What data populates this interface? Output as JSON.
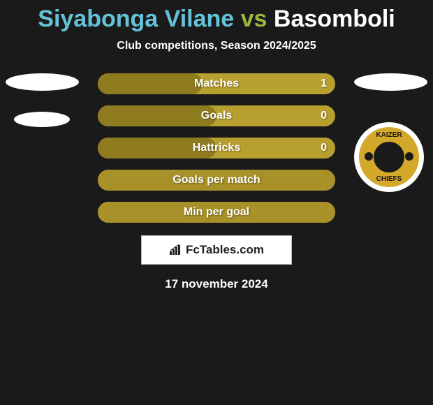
{
  "title": {
    "player1": "Siyabonga Vilane",
    "vs": "vs",
    "player2": "Basomboli",
    "player1_color": "#64c3d8",
    "vs_color": "#9ab83e",
    "player2_color": "#ffffff"
  },
  "subtitle": "Club competitions, Season 2024/2025",
  "colors": {
    "background": "#1a1a1a",
    "bar_primary": "#a89128",
    "bar_secondary": "#b8a030",
    "bar_full": "#a89128"
  },
  "stats": [
    {
      "label": "Matches",
      "left_value": null,
      "right_value": "1",
      "left_pct": 44,
      "left_color": "#8f7c20",
      "right_color": "#b8a030"
    },
    {
      "label": "Goals",
      "left_value": null,
      "right_value": "0",
      "left_pct": 50,
      "left_color": "#8f7c20",
      "right_color": "#b8a030"
    },
    {
      "label": "Hattricks",
      "left_value": null,
      "right_value": "0",
      "left_pct": 50,
      "left_color": "#8f7c20",
      "right_color": "#b8a030"
    },
    {
      "label": "Goals per match",
      "left_value": null,
      "right_value": null,
      "left_pct": 100,
      "left_color": "#a89128",
      "right_color": "#a89128"
    },
    {
      "label": "Min per goal",
      "left_value": null,
      "right_value": null,
      "left_pct": 100,
      "left_color": "#a89128",
      "right_color": "#a89128"
    }
  ],
  "logo": {
    "text": "FcTables.com"
  },
  "date": "17 november 2024",
  "club_badge": {
    "top_text": "KAIZER",
    "bottom_text": "CHIEFS"
  }
}
